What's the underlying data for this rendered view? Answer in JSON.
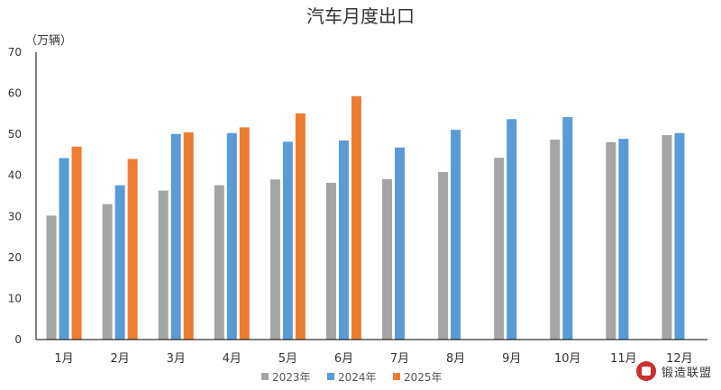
{
  "chart_data": {
    "type": "bar",
    "title": "汽车月度出口",
    "ylabel": "（万辆）",
    "xlabel": "",
    "ylim": [
      0,
      70
    ],
    "yticks": [
      0,
      10,
      20,
      30,
      40,
      50,
      60,
      70
    ],
    "grid": false,
    "legend": "bottom",
    "categories": [
      "1月",
      "2月",
      "3月",
      "4月",
      "5月",
      "6月",
      "7月",
      "8月",
      "9月",
      "10月",
      "11月",
      "12月"
    ],
    "series": [
      {
        "name": "2023年",
        "color": "#a5a5a5",
        "values": [
          30.2,
          33.0,
          36.3,
          37.6,
          39.0,
          38.2,
          39.1,
          40.8,
          44.3,
          48.7,
          48.1,
          49.8
        ]
      },
      {
        "name": "2024年",
        "color": "#5b9bd5",
        "values": [
          44.2,
          37.6,
          50.1,
          50.3,
          48.2,
          48.5,
          46.8,
          51.1,
          53.7,
          54.2,
          48.9,
          50.3
        ]
      },
      {
        "name": "2025年",
        "color": "#ed7d31",
        "values": [
          47.0,
          44.0,
          50.5,
          51.7,
          55.1,
          59.3,
          null,
          null,
          null,
          null,
          null,
          null
        ]
      }
    ]
  },
  "watermark": {
    "text": "锻造联盟",
    "icon": "forging-alliance-logo-icon"
  }
}
